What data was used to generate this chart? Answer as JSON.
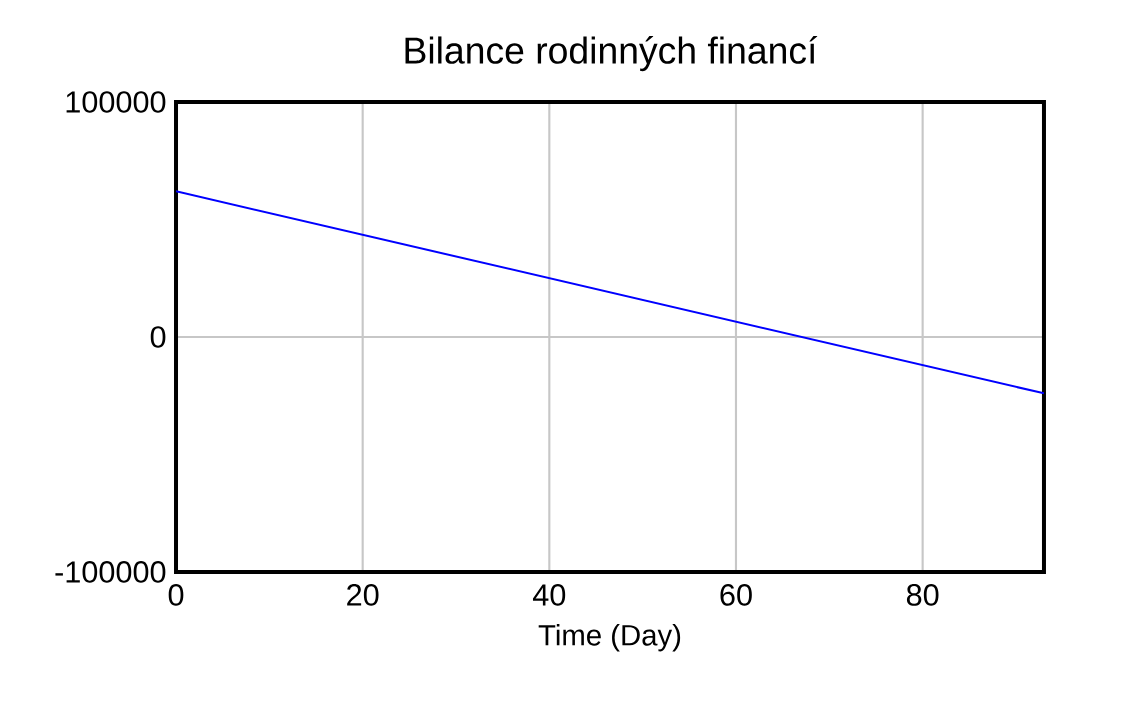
{
  "chart_data": {
    "type": "line",
    "title": "Bilance rodinných financí",
    "xlabel": "Time (Day)",
    "x": [
      0,
      93
    ],
    "series": [
      {
        "color": "#0000ff",
        "values": [
          62000,
          -24000
        ]
      }
    ],
    "xlim": [
      0,
      93
    ],
    "xticks": [
      0,
      20,
      40,
      60,
      80
    ],
    "ylim": [
      -100000,
      100000
    ],
    "yticks": [
      -100000,
      0,
      100000
    ],
    "grid": true,
    "marker": "none",
    "line_style": "solid"
  }
}
